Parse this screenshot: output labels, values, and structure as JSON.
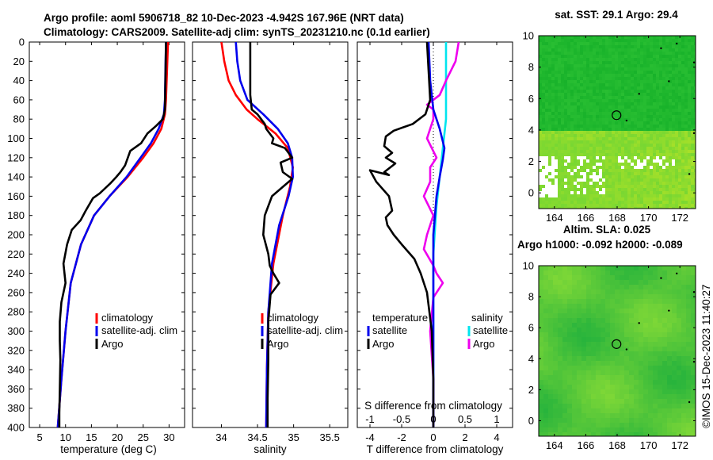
{
  "header": {
    "title_line1": "Argo profile: aoml 5906718_82 10-Dec-2023 -4.942S 167.96E (NRT data)",
    "title_line2": "Climatology: CARS2009. Satellite-adj clim: synTS_20231210.nc (0.1d earlier)",
    "sst_title": "sat. SST: 29.1 Argo: 29.4",
    "sla_title1": "Altim. SLA: 0.025",
    "sla_title2": "Argo h1000: -0.092 h2000: -0.089",
    "credit": "©IMOS 15-Dec-2023 11:40:27"
  },
  "colors": {
    "climatology": "#ff0000",
    "satellite": "#0000ee",
    "argo": "#000000",
    "sal_sat": "#00e5ee",
    "sal_argo": "#ee00ee"
  },
  "chart_data": [
    {
      "type": "line",
      "id": "temperature",
      "xlabel": "temperature (deg C)",
      "ylabel": "",
      "xlim": [
        3,
        33
      ],
      "ylim": [
        400,
        0
      ],
      "xticks": [
        5,
        10,
        15,
        20,
        25,
        30
      ],
      "yticks": [
        0,
        20,
        40,
        60,
        80,
        100,
        120,
        140,
        160,
        180,
        200,
        220,
        240,
        260,
        280,
        300,
        320,
        340,
        360,
        380,
        400
      ],
      "legend": [
        "climatology",
        "satellite-adj. clim",
        "Argo"
      ],
      "series": [
        {
          "name": "climatology",
          "x": [
            29.8,
            29.6,
            29.4,
            29.2,
            28.5,
            27.0,
            25.0,
            22.0,
            18.5,
            15.5,
            13.0,
            11.0,
            10.0,
            9.2,
            8.5
          ],
          "y": [
            0,
            30,
            60,
            75,
            90,
            105,
            120,
            140,
            160,
            180,
            210,
            250,
            300,
            350,
            400
          ]
        },
        {
          "name": "satellite-adj. clim",
          "x": [
            29.4,
            29.3,
            29.2,
            29.0,
            28.0,
            26.5,
            24.5,
            21.8,
            18.5,
            15.5,
            13.0,
            11.0,
            10.0,
            9.2,
            8.5
          ],
          "y": [
            0,
            30,
            60,
            75,
            90,
            105,
            120,
            140,
            160,
            180,
            210,
            250,
            300,
            350,
            400
          ]
        },
        {
          "name": "Argo",
          "x": [
            29.4,
            29.3,
            29.2,
            28.8,
            27.5,
            25.8,
            24.6,
            22.5,
            21.5,
            20.6,
            19.8,
            18.6,
            16.6,
            15.3,
            13.9,
            12.9,
            11.2,
            10.3,
            9.6,
            10.0,
            9.2,
            8.9,
            8.9,
            9.0,
            8.9,
            8.8,
            8.8
          ],
          "y": [
            0,
            40,
            70,
            80,
            87,
            95,
            105,
            113,
            128,
            135,
            140,
            147,
            157,
            162,
            175,
            185,
            195,
            210,
            230,
            250,
            270,
            290,
            310,
            330,
            360,
            385,
            400
          ]
        }
      ]
    },
    {
      "type": "line",
      "id": "salinity",
      "xlabel": "salinity",
      "xlim": [
        33.6,
        35.75
      ],
      "ylim": [
        400,
        0
      ],
      "xticks": [
        34,
        34.5,
        35,
        35.5
      ],
      "legend": [
        "climatology",
        "satellite-adj. clim",
        "Argo"
      ],
      "series": [
        {
          "name": "climatology",
          "x": [
            34.0,
            34.04,
            34.1,
            34.2,
            34.35,
            34.5,
            34.75,
            34.92,
            34.99,
            34.95,
            34.85,
            34.72,
            34.65,
            34.63,
            34.62
          ],
          "y": [
            0,
            20,
            40,
            55,
            70,
            80,
            95,
            110,
            130,
            150,
            180,
            230,
            280,
            340,
            400
          ]
        },
        {
          "name": "satellite-adj. clim",
          "x": [
            34.2,
            34.22,
            34.26,
            34.36,
            34.58,
            34.78,
            34.92,
            34.98,
            34.99,
            34.93,
            34.8,
            34.7,
            34.65,
            34.63,
            34.62
          ],
          "y": [
            0,
            20,
            40,
            60,
            75,
            90,
            105,
            120,
            140,
            160,
            190,
            230,
            280,
            340,
            400
          ]
        },
        {
          "name": "Argo",
          "x": [
            34.4,
            34.4,
            34.4,
            34.42,
            34.5,
            34.55,
            34.6,
            34.62,
            34.72,
            34.7,
            34.88,
            34.98,
            34.82,
            34.85,
            34.98,
            34.7,
            34.6,
            34.58,
            34.65,
            34.67,
            34.72,
            34.8,
            34.68,
            34.65,
            34.65,
            34.64,
            34.64
          ],
          "y": [
            0,
            30,
            55,
            70,
            75,
            80,
            85,
            90,
            100,
            105,
            110,
            120,
            125,
            135,
            142,
            160,
            180,
            200,
            220,
            232,
            240,
            250,
            262,
            290,
            330,
            370,
            400
          ]
        }
      ]
    },
    {
      "type": "line",
      "id": "differences",
      "xlabel": "T difference from climatology",
      "xlabel_top": "S difference from climatology",
      "xlim": [
        -4.8,
        5.0
      ],
      "xlim_top": [
        -1.2,
        1.25
      ],
      "ylim": [
        400,
        0
      ],
      "xticks": [
        -4,
        -2,
        0,
        2,
        4
      ],
      "xticks_top": [
        -1,
        -0.5,
        0,
        0.5,
        1
      ],
      "xtick_labels_top": [
        "-1",
        "-0.5",
        "0",
        "0.5",
        "1"
      ],
      "legend_left_title": "temperature",
      "legend_right_title": "salinity",
      "legend_left": [
        "satellite",
        "Argo"
      ],
      "legend_right": [
        "satellite",
        "Argo"
      ],
      "series": [
        {
          "name": "T satellite",
          "x": [
            -0.3,
            -0.2,
            0.0,
            0.4,
            0.7,
            0.6,
            0.4,
            0.2,
            0.0,
            0.0,
            0.0
          ],
          "y": [
            0,
            40,
            70,
            90,
            110,
            122,
            140,
            160,
            200,
            280,
            400
          ]
        },
        {
          "name": "T Argo",
          "x": [
            -0.4,
            -0.3,
            -0.2,
            -0.5,
            -1.3,
            -2.5,
            -3.0,
            -3.1,
            -2.6,
            -3.0,
            -2.4,
            -3.1,
            -2.8,
            -4.0,
            -3.6,
            -2.8,
            -2.6,
            -3.0,
            -2.9,
            -2.5,
            -2.0,
            -1.2,
            -0.8,
            -0.4,
            -0.1,
            0.0,
            0.0
          ],
          "y": [
            0,
            30,
            60,
            75,
            85,
            92,
            98,
            108,
            115,
            120,
            126,
            135,
            138,
            133,
            145,
            160,
            175,
            182,
            190,
            200,
            210,
            225,
            240,
            260,
            300,
            350,
            400
          ]
        },
        {
          "name": "S satellite",
          "x": [
            0.2,
            0.2,
            0.2,
            0.15,
            0.1,
            0.05,
            0.0,
            0.0,
            0.0
          ],
          "y": [
            0,
            40,
            80,
            110,
            140,
            170,
            220,
            300,
            400
          ]
        },
        {
          "name": "S Argo",
          "x": [
            0.4,
            0.35,
            0.2,
            0.1,
            -0.1,
            0.0,
            0.0,
            -0.05,
            -0.1,
            0.05,
            -0.05,
            -0.05,
            -0.15,
            0.0,
            -0.1,
            -0.15,
            0.0,
            0.05,
            0.15,
            0.0,
            -0.05,
            0.0,
            0.0
          ],
          "y": [
            0,
            20,
            40,
            55,
            65,
            70,
            80,
            90,
            100,
            120,
            130,
            145,
            160,
            180,
            200,
            215,
            232,
            240,
            250,
            265,
            300,
            350,
            400
          ]
        }
      ]
    },
    {
      "type": "heatmap",
      "id": "sst_map",
      "title": "sat. SST: 29.1 Argo: 29.4",
      "xlim": [
        163,
        173
      ],
      "ylim": [
        -1,
        10
      ],
      "xticks": [
        164,
        166,
        168,
        170,
        172
      ],
      "yticks": [
        0,
        2,
        4,
        6,
        8,
        10
      ],
      "marker": {
        "lon": 167.96,
        "lat": 4.942
      }
    },
    {
      "type": "heatmap",
      "id": "sla_map",
      "title": "Altim. SLA: 0.025",
      "xlim": [
        163,
        173
      ],
      "ylim": [
        -1,
        10
      ],
      "xticks": [
        164,
        166,
        168,
        170,
        172
      ],
      "yticks": [
        0,
        2,
        4,
        6,
        8,
        10
      ],
      "marker": {
        "lon": 167.96,
        "lat": 4.942
      }
    }
  ]
}
